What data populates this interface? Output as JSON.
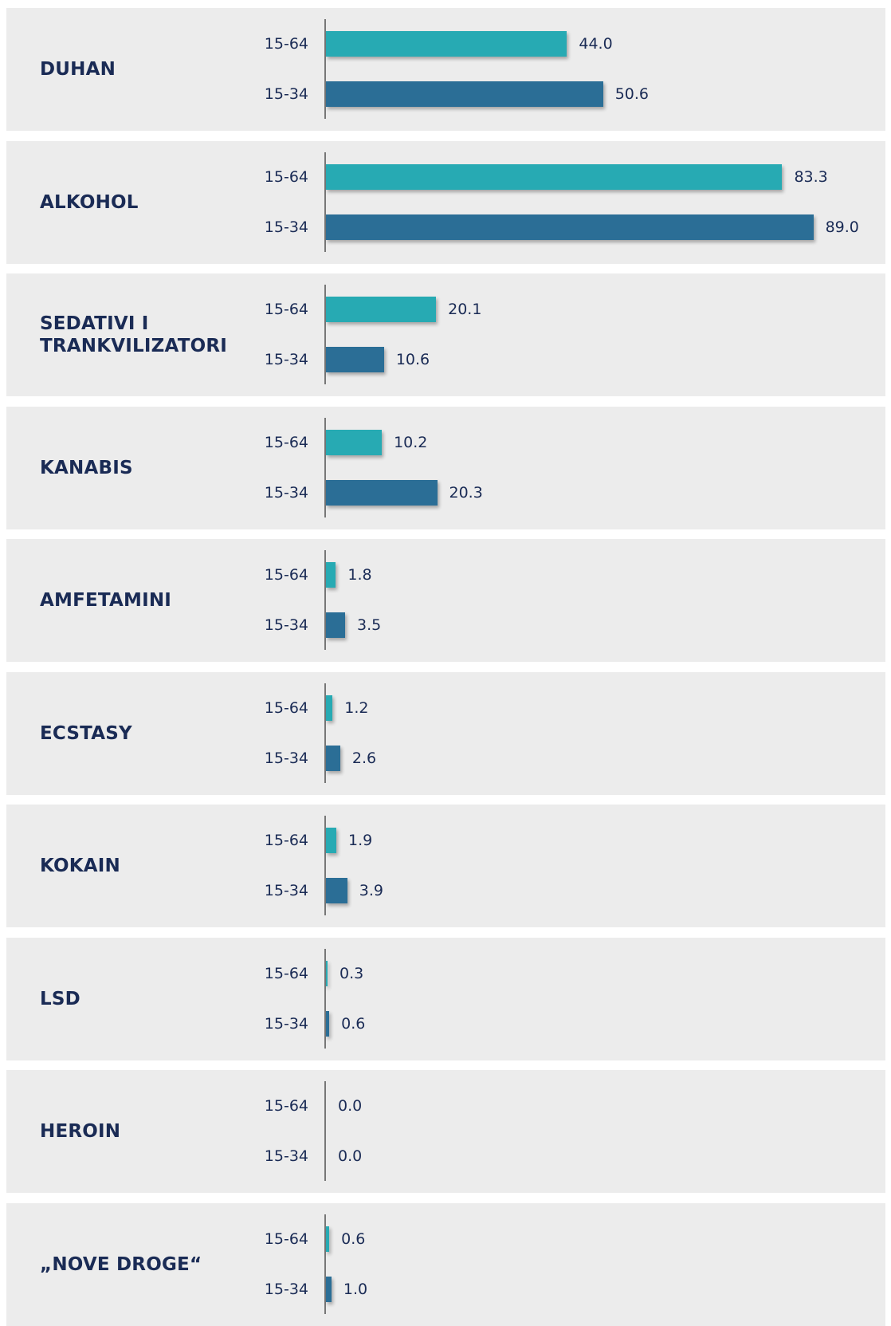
{
  "chart_data": {
    "type": "bar",
    "orientation": "horizontal",
    "categories": [
      "DUHAN",
      "ALKOHOL",
      "SEDATIVI I TRANKVILIZATORI",
      "KANABIS",
      "AMFETAMINI",
      "ECSTASY",
      "KOKAIN",
      "LSD",
      "HEROIN",
      "„NOVE DROGE“"
    ],
    "series": [
      {
        "name": "15-64",
        "color": "#27aab3",
        "values": [
          44.0,
          83.3,
          20.1,
          10.2,
          1.8,
          1.2,
          1.9,
          0.3,
          0.0,
          0.6
        ],
        "value_labels": [
          "44.0",
          "83.3",
          "20.1",
          "10.2",
          "1.8",
          "1.2",
          "1.9",
          "0.3",
          "0.0",
          "0.6"
        ]
      },
      {
        "name": "15-34",
        "color": "#2b6e96",
        "values": [
          50.6,
          89.0,
          10.6,
          20.3,
          3.5,
          2.6,
          3.9,
          0.6,
          0.0,
          1.0
        ],
        "value_labels": [
          "50.6",
          "89.0",
          "10.6",
          "20.3",
          "3.5",
          "2.6",
          "3.9",
          "0.6",
          "0.0",
          "1.0"
        ]
      }
    ]
  }
}
